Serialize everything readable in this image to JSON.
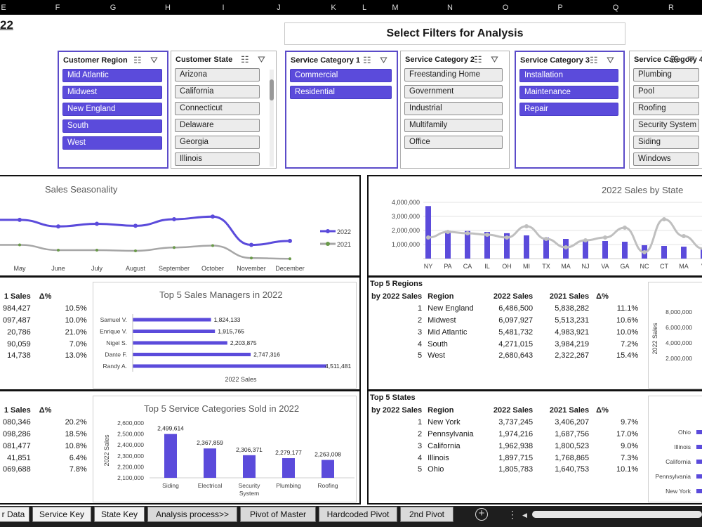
{
  "columns": [
    "E",
    "F",
    "G",
    "H",
    "I",
    "J",
    "K",
    "L",
    "M",
    "N",
    "O",
    "P",
    "Q",
    "R"
  ],
  "title_fragment": "22",
  "filter_title": "Select Filters for Analysis",
  "slicers": [
    {
      "title": "Customer Region",
      "items": [
        {
          "label": "Mid Atlantic",
          "selected": true
        },
        {
          "label": "Midwest",
          "selected": true
        },
        {
          "label": "New England",
          "selected": true
        },
        {
          "label": "South",
          "selected": true
        },
        {
          "label": "West",
          "selected": true
        }
      ]
    },
    {
      "title": "Customer State",
      "items": [
        {
          "label": "Arizona",
          "selected": false
        },
        {
          "label": "California",
          "selected": false
        },
        {
          "label": "Connecticut",
          "selected": false
        },
        {
          "label": "Delaware",
          "selected": false
        },
        {
          "label": "Georgia",
          "selected": false
        },
        {
          "label": "Illinois",
          "selected": false
        }
      ]
    },
    {
      "title": "Service Category 1",
      "items": [
        {
          "label": "Commercial",
          "selected": true
        },
        {
          "label": "Residential",
          "selected": true
        }
      ]
    },
    {
      "title": "Service Category 2",
      "items": [
        {
          "label": "Freestanding Home",
          "selected": false
        },
        {
          "label": "Government",
          "selected": false
        },
        {
          "label": "Industrial",
          "selected": false
        },
        {
          "label": "Multifamily",
          "selected": false
        },
        {
          "label": "Office",
          "selected": false
        }
      ]
    },
    {
      "title": "Service Category 3",
      "items": [
        {
          "label": "Installation",
          "selected": true
        },
        {
          "label": "Maintenance",
          "selected": true
        },
        {
          "label": "Repair",
          "selected": true
        }
      ]
    },
    {
      "title": "Service Category 4",
      "items": [
        {
          "label": "Plumbing",
          "selected": false
        },
        {
          "label": "Pool",
          "selected": false
        },
        {
          "label": "Roofing",
          "selected": false
        },
        {
          "label": "Security System",
          "selected": false
        },
        {
          "label": "Siding",
          "selected": false
        },
        {
          "label": "Windows",
          "selected": false
        }
      ]
    }
  ],
  "left_tables": {
    "managers": {
      "headers": [
        "1 Sales",
        "Δ%"
      ],
      "rows": [
        [
          "984,427",
          "10.5%"
        ],
        [
          "097,487",
          "10.0%"
        ],
        [
          "20,786",
          "21.0%"
        ],
        [
          "90,059",
          "7.0%"
        ],
        [
          "14,738",
          "13.0%"
        ]
      ]
    },
    "categories": {
      "headers": [
        "1 Sales",
        "Δ%"
      ],
      "rows": [
        [
          "080,346",
          "20.2%"
        ],
        [
          "098,286",
          "18.5%"
        ],
        [
          "081,477",
          "10.8%"
        ],
        [
          "41,851",
          "6.4%"
        ],
        [
          "069,688",
          "7.8%"
        ]
      ]
    }
  },
  "top_regions": {
    "title_line1": "Top 5 Regions",
    "title_line2": "by 2022 Sales",
    "headers": [
      "Region",
      "2022 Sales",
      "2021 Sales",
      "Δ%"
    ],
    "rows": [
      {
        "rank": "1",
        "name": "New England",
        "s2022": "6,486,500",
        "s2021": "5,838,282",
        "delta": "11.1%"
      },
      {
        "rank": "2",
        "name": "Midwest",
        "s2022": "6,097,927",
        "s2021": "5,513,231",
        "delta": "10.6%"
      },
      {
        "rank": "3",
        "name": "Mid Atlantic",
        "s2022": "5,481,732",
        "s2021": "4,983,921",
        "delta": "10.0%"
      },
      {
        "rank": "4",
        "name": "South",
        "s2022": "4,271,015",
        "s2021": "3,984,219",
        "delta": "7.2%"
      },
      {
        "rank": "5",
        "name": "West",
        "s2022": "2,680,643",
        "s2021": "2,322,267",
        "delta": "15.4%"
      }
    ]
  },
  "top_states": {
    "title_line1": "Top 5 States",
    "title_line2": "by 2022 Sales",
    "headers": [
      "Region",
      "2022 Sales",
      "2021 Sales",
      "Δ%"
    ],
    "rows": [
      {
        "rank": "1",
        "name": "New York",
        "s2022": "3,737,245",
        "s2021": "3,406,207",
        "delta": "9.7%"
      },
      {
        "rank": "2",
        "name": "Pennsylvania",
        "s2022": "1,974,216",
        "s2021": "1,687,756",
        "delta": "17.0%"
      },
      {
        "rank": "3",
        "name": "California",
        "s2022": "1,962,938",
        "s2021": "1,800,523",
        "delta": "9.0%"
      },
      {
        "rank": "4",
        "name": "Illinois",
        "s2022": "1,897,715",
        "s2021": "1,768,865",
        "delta": "7.3%"
      },
      {
        "rank": "5",
        "name": "Ohio",
        "s2022": "1,805,783",
        "s2021": "1,640,753",
        "delta": "10.1%"
      }
    ]
  },
  "chart_data": [
    {
      "type": "line",
      "title": "Sales Seasonality",
      "x": [
        "May",
        "June",
        "July",
        "August",
        "September",
        "October",
        "November",
        "December"
      ],
      "series": [
        {
          "name": "2022",
          "color": "#5b4bdb",
          "values": [
            2600000,
            2100000,
            2300000,
            2150000,
            2650000,
            2850000,
            700000,
            1000000
          ]
        },
        {
          "name": "2021",
          "color": "#a6a6a6",
          "values": [
            700000,
            300000,
            300000,
            250000,
            500000,
            650000,
            -300000,
            -350000
          ]
        }
      ],
      "legend_position": "right"
    },
    {
      "type": "bar",
      "title": "2022 Sales by State",
      "categories": [
        "NY",
        "PA",
        "CA",
        "IL",
        "OH",
        "MI",
        "TX",
        "MA",
        "NJ",
        "VA",
        "GA",
        "NC",
        "CT",
        "MA",
        "V"
      ],
      "values": [
        3737245,
        1974216,
        1962938,
        1897715,
        1805783,
        1650000,
        1500000,
        1400000,
        1300000,
        1250000,
        1200000,
        950000,
        900000,
        850000,
        700000
      ],
      "trend": [
        1500000,
        1900000,
        1800000,
        1700000,
        1500000,
        2300000,
        1400000,
        800000,
        1300000,
        1500000,
        2200000,
        450000,
        2800000,
        1600000,
        700000
      ],
      "yticks": [
        "1,000,000",
        "2,000,000",
        "3,000,000",
        "4,000,000"
      ],
      "ylim": [
        0,
        4000000
      ],
      "grid": true,
      "bar_color": "#5b4bdb",
      "trend_color": "#bfbfbf"
    },
    {
      "type": "bar",
      "title": "Top 5 Sales Managers in 2022",
      "orientation": "horizontal",
      "categories": [
        "Samuel V.",
        "Enrique V.",
        "Nigel S.",
        "Dante F.",
        "Randy A."
      ],
      "values": [
        1824133,
        1915765,
        2203875,
        2747316,
        4511481
      ],
      "labels": [
        "1,824,133",
        "1,915,765",
        "2,203,875",
        "2,747,316",
        "4,511,481"
      ],
      "xlabel": "2022 Sales",
      "bar_color": "#5b4bdb"
    },
    {
      "type": "bar",
      "title": "Top 5 Service Categories Sold in 2022",
      "categories": [
        "Siding",
        "Electrical",
        "Security System",
        "Plumbing",
        "Roofing"
      ],
      "values": [
        2499614,
        2367859,
        2306371,
        2279177,
        2263008
      ],
      "labels": [
        "2,499,614",
        "2,367,859",
        "2,306,371",
        "2,279,177",
        "2,263,008"
      ],
      "ylabel": "2022 Sales",
      "ylim": [
        2100000,
        2600000
      ],
      "yticks": [
        "2,100,000",
        "2,200,000",
        "2,300,000",
        "2,400,000",
        "2,500,000",
        "2,600,000"
      ],
      "grid": false,
      "bar_color": "#5b4bdb"
    },
    {
      "type": "bar",
      "partial": true,
      "ylabel": "2022 Sales",
      "yticks": [
        "2,000,000",
        "4,000,000",
        "6,000,000",
        "8,000,000"
      ]
    },
    {
      "type": "bar",
      "partial": true,
      "orientation": "horizontal",
      "categories": [
        "Ohio",
        "Illinois",
        "California",
        "Pennsylvania",
        "New York"
      ]
    }
  ],
  "sheet_tabs": [
    "r Data",
    "Service Key",
    "State Key",
    "Analysis process>>",
    "Pivot of Master",
    "Hardcoded Pivot",
    "2nd Pivot"
  ],
  "tab_controls": {
    "add": "+",
    "more": "⋮"
  },
  "colors": {
    "accent": "#5b4bdb",
    "secondary": "#a6a6a6"
  }
}
